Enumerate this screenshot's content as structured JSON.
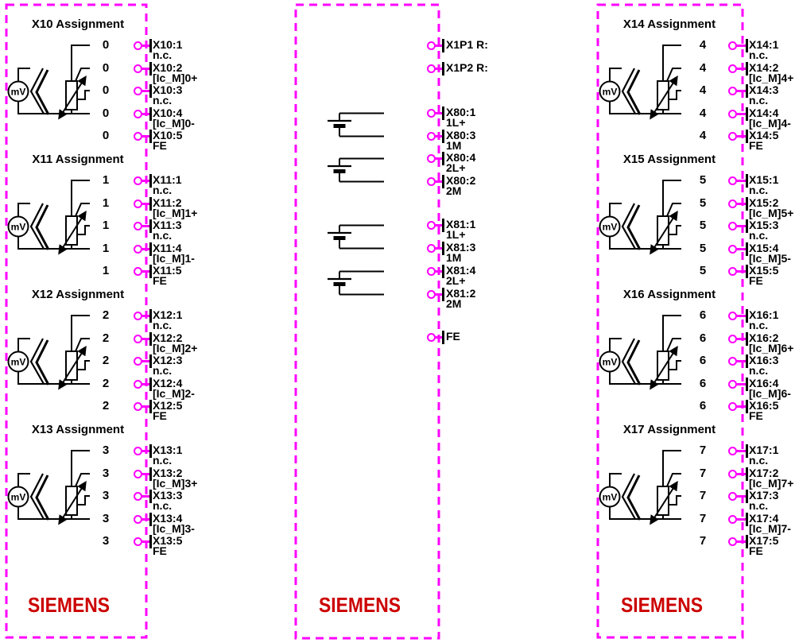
{
  "diagram": {
    "background": "#ffffff",
    "accent_color": "#ff00ff",
    "wire_color": "#000000",
    "brand_color": "#cc0000",
    "mv_label": "mV",
    "columns": [
      {
        "id": "left",
        "type": "sensor-panel",
        "brand": "SIEMENS",
        "blocks": [
          {
            "title": "X10 Assignment",
            "channel": "0",
            "pins": [
              {
                "terminal": "X10:1",
                "signal": "n.c."
              },
              {
                "terminal": "X10:2",
                "signal": "[Ic_M]0+"
              },
              {
                "terminal": "X10:3",
                "signal": "n.c."
              },
              {
                "terminal": "X10:4",
                "signal": "[Ic_M]0-"
              },
              {
                "terminal": "X10:5",
                "signal": "FE"
              }
            ]
          },
          {
            "title": "X11 Assignment",
            "channel": "1",
            "pins": [
              {
                "terminal": "X11:1",
                "signal": "n.c."
              },
              {
                "terminal": "X11:2",
                "signal": "[Ic_M]1+"
              },
              {
                "terminal": "X11:3",
                "signal": "n.c."
              },
              {
                "terminal": "X11:4",
                "signal": "[Ic_M]1-"
              },
              {
                "terminal": "X11:5",
                "signal": "FE"
              }
            ]
          },
          {
            "title": "X12 Assignment",
            "channel": "2",
            "pins": [
              {
                "terminal": "X12:1",
                "signal": "n.c."
              },
              {
                "terminal": "X12:2",
                "signal": "[Ic_M]2+"
              },
              {
                "terminal": "X12:3",
                "signal": "n.c."
              },
              {
                "terminal": "X12:4",
                "signal": "[Ic_M]2-"
              },
              {
                "terminal": "X12:5",
                "signal": "FE"
              }
            ]
          },
          {
            "title": "X13 Assignment",
            "channel": "3",
            "pins": [
              {
                "terminal": "X13:1",
                "signal": "n.c."
              },
              {
                "terminal": "X13:2",
                "signal": "[Ic_M]3+"
              },
              {
                "terminal": "X13:3",
                "signal": "n.c."
              },
              {
                "terminal": "X13:4",
                "signal": "[Ic_M]3-"
              },
              {
                "terminal": "X13:5",
                "signal": "FE"
              }
            ]
          }
        ]
      },
      {
        "id": "middle",
        "type": "power-panel",
        "brand": "SIEMENS",
        "top_pins": [
          {
            "label": "X1P1 R:"
          },
          {
            "label": "X1P2 R:"
          }
        ],
        "supply_groups": [
          {
            "pins": [
              {
                "terminal": "X80:1",
                "signal": "1L+"
              },
              {
                "terminal": "X80:3",
                "signal": "1M"
              },
              {
                "terminal": "X80:4",
                "signal": "2L+"
              },
              {
                "terminal": "X80:2",
                "signal": "2M"
              }
            ]
          },
          {
            "pins": [
              {
                "terminal": "X81:1",
                "signal": "1L+"
              },
              {
                "terminal": "X81:3",
                "signal": "1M"
              },
              {
                "terminal": "X81:4",
                "signal": "2L+"
              },
              {
                "terminal": "X81:2",
                "signal": "2M"
              }
            ]
          }
        ],
        "ground_pin": {
          "label": "FE"
        }
      },
      {
        "id": "right",
        "type": "sensor-panel",
        "brand": "SIEMENS",
        "blocks": [
          {
            "title": "X14 Assignment",
            "channel": "4",
            "pins": [
              {
                "terminal": "X14:1",
                "signal": "n.c."
              },
              {
                "terminal": "X14:2",
                "signal": "[Ic_M]4+"
              },
              {
                "terminal": "X14:3",
                "signal": "n.c."
              },
              {
                "terminal": "X14:4",
                "signal": "[Ic_M]4-"
              },
              {
                "terminal": "X14:5",
                "signal": "FE"
              }
            ]
          },
          {
            "title": "X15 Assignment",
            "channel": "5",
            "pins": [
              {
                "terminal": "X15:1",
                "signal": "n.c."
              },
              {
                "terminal": "X15:2",
                "signal": "[Ic_M]5+"
              },
              {
                "terminal": "X15:3",
                "signal": "n.c."
              },
              {
                "terminal": "X15:4",
                "signal": "[Ic_M]5-"
              },
              {
                "terminal": "X15:5",
                "signal": "FE"
              }
            ]
          },
          {
            "title": "X16 Assignment",
            "channel": "6",
            "pins": [
              {
                "terminal": "X16:1",
                "signal": "n.c."
              },
              {
                "terminal": "X16:2",
                "signal": "[Ic_M]6+"
              },
              {
                "terminal": "X16:3",
                "signal": "n.c."
              },
              {
                "terminal": "X16:4",
                "signal": "[Ic_M]6-"
              },
              {
                "terminal": "X16:5",
                "signal": "FE"
              }
            ]
          },
          {
            "title": "X17 Assignment",
            "channel": "7",
            "pins": [
              {
                "terminal": "X17:1",
                "signal": "n.c."
              },
              {
                "terminal": "X17:2",
                "signal": "[Ic_M]7+"
              },
              {
                "terminal": "X17:3",
                "signal": "n.c."
              },
              {
                "terminal": "X17:4",
                "signal": "[Ic_M]7-"
              },
              {
                "terminal": "X17:5",
                "signal": "FE"
              }
            ]
          }
        ]
      }
    ]
  }
}
